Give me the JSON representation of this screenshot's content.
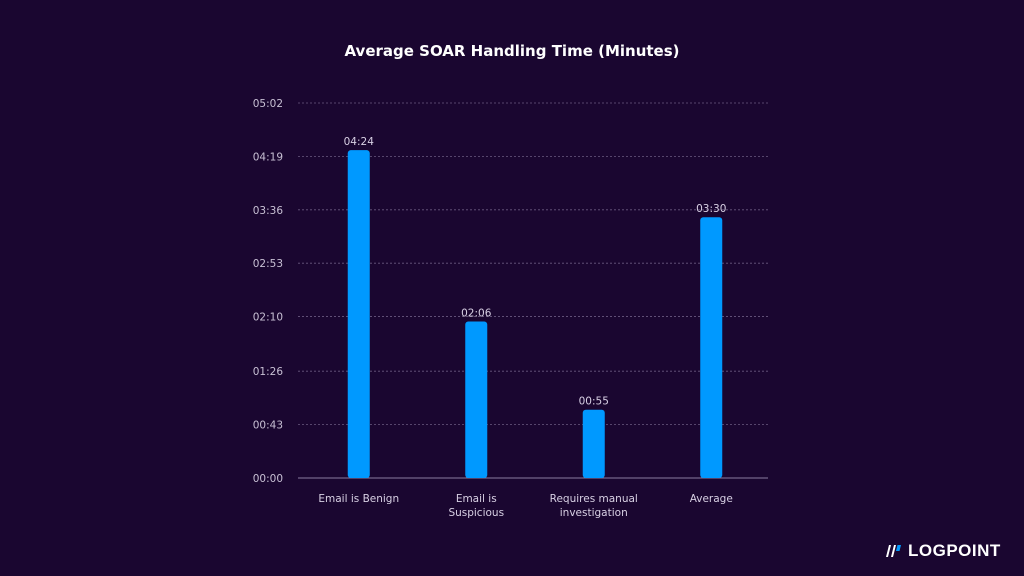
{
  "chart_data": {
    "type": "bar",
    "title": "Average SOAR Handling Time (Minutes)",
    "categories": [
      [
        "Email is Benign"
      ],
      [
        "Email is",
        "Suspicious"
      ],
      [
        "Requires manual",
        "investigation"
      ],
      [
        "Average"
      ]
    ],
    "values": [
      264,
      126,
      55,
      210
    ],
    "value_labels": [
      "04:24",
      "02:06",
      "00:55",
      "03:30"
    ],
    "value_unit": "seconds",
    "yticks": [
      0,
      43,
      86,
      130,
      173,
      216,
      259,
      302
    ],
    "ytick_labels": [
      "00:00",
      "00:43",
      "01:26",
      "02:10",
      "02:53",
      "03:36",
      "04:19",
      "05:02"
    ],
    "ylim": [
      0,
      302
    ],
    "grid": true,
    "bar_color": "#0099ff",
    "background": "#1a0630"
  },
  "brand": {
    "logo_text": "LOGPOINT"
  }
}
